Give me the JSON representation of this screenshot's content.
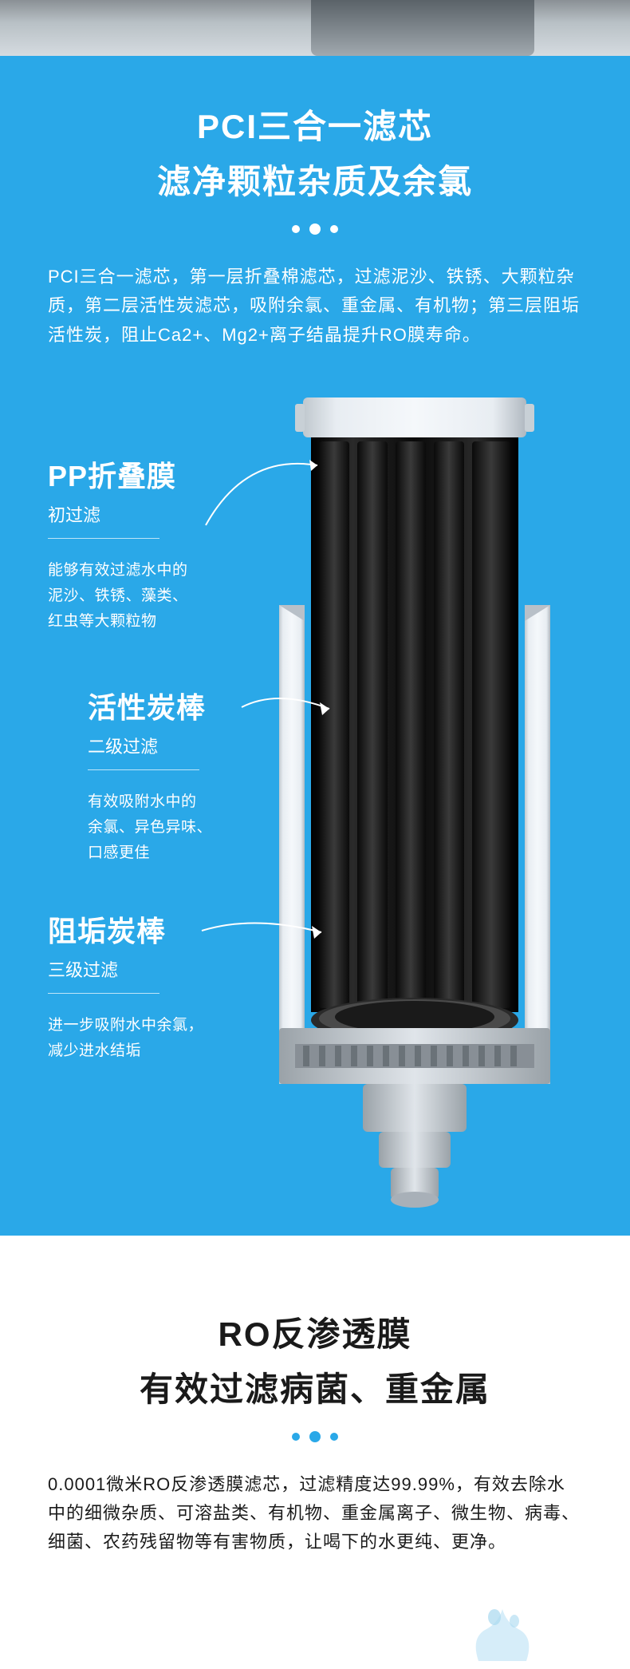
{
  "colors": {
    "primary_blue": "#2aa8e8",
    "white": "#ffffff",
    "black_text": "#1a1a1a",
    "filter_dark": "#1a1a1a",
    "filter_rod_dark": "#0a0a0a",
    "filter_casing": "#d8dde2",
    "filter_casing_shadow": "#a8b0b8",
    "filter_edge": "#8a9298"
  },
  "section1": {
    "title1": "PCI三合一滤芯",
    "title2": "滤净颗粒杂质及余氯",
    "desc": "PCI三合一滤芯，第一层折叠棉滤芯，过滤泥沙、铁锈、大颗粒杂质，第二层活性炭滤芯，吸附余氯、重金属、有机物；第三层阻垢活性炭，阻止Ca2+、Mg2+离子结晶提升RO膜寿命。"
  },
  "callouts": [
    {
      "title": "PP折叠膜",
      "sub": "初过滤",
      "desc": "能够有效过滤水中的\n泥沙、铁锈、藻类、\n红虫等大颗粒物"
    },
    {
      "title": "活性炭棒",
      "sub": "二级过滤",
      "desc": "有效吸附水中的\n余氯、异色异味、\n口感更佳"
    },
    {
      "title": "阻垢炭棒",
      "sub": "三级过滤",
      "desc": "进一步吸附水中余氯，\n减少进水结垢"
    }
  ],
  "section2": {
    "title1": "RO反渗透膜",
    "title2": "有效过滤病菌、重金属",
    "desc": "0.0001微米RO反渗透膜滤芯，过滤精度达99.99%，有效去除水中的细微杂质、可溶盐类、有机物、重金属离子、微生物、病毒、细菌、农药残留物等有害物质，让喝下的水更纯、更净。"
  }
}
